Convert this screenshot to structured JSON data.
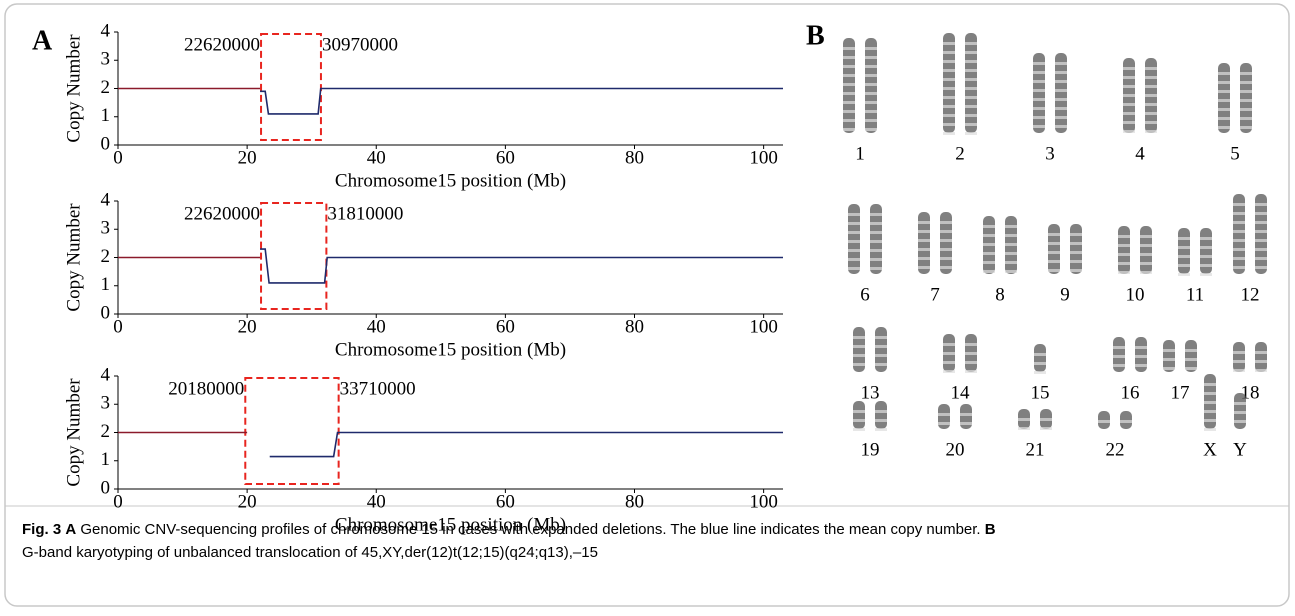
{
  "panel_a": "A",
  "panel_b": "B",
  "chart_data": [
    {
      "type": "line",
      "xlabel": "Chromosome15 position (Mb)",
      "ylabel": "Copy Number",
      "xlim": [
        0,
        103
      ],
      "xticks": [
        0,
        20,
        40,
        60,
        80,
        100
      ],
      "ylim": [
        0,
        4
      ],
      "yticks": [
        0,
        1,
        2,
        3,
        4
      ],
      "annotations": [
        22620000,
        30970000
      ],
      "series": [
        {
          "color": "#8b1a2b",
          "x": [
            0,
            22
          ],
          "values": [
            2,
            2
          ]
        },
        {
          "color": "#1f2a6b",
          "x": [
            22,
            22.8,
            23.3,
            31,
            31.4,
            103
          ],
          "values": [
            1.9,
            1.9,
            1.1,
            1.1,
            2,
            2
          ]
        }
      ]
    },
    {
      "type": "line",
      "xlabel": "Chromosome15 position (Mb)",
      "ylabel": "Copy Number",
      "xlim": [
        0,
        103
      ],
      "xticks": [
        0,
        20,
        40,
        60,
        80,
        100
      ],
      "ylim": [
        0,
        4
      ],
      "yticks": [
        0,
        1,
        2,
        3,
        4
      ],
      "annotations": [
        22620000,
        31810000
      ],
      "series": [
        {
          "color": "#8b1a2b",
          "x": [
            0,
            22
          ],
          "values": [
            2,
            2
          ]
        },
        {
          "color": "#1f2a6b",
          "x": [
            22,
            22.8,
            23.4,
            32,
            32.4,
            103
          ],
          "values": [
            2.3,
            2.3,
            1.1,
            1.1,
            2,
            2
          ]
        }
      ]
    },
    {
      "type": "line",
      "xlabel": "Chromosome15 position (Mb)",
      "ylabel": "Copy Number",
      "xlim": [
        0,
        103
      ],
      "xticks": [
        0,
        20,
        40,
        60,
        80,
        100
      ],
      "ylim": [
        0,
        4
      ],
      "yticks": [
        0,
        1,
        2,
        3,
        4
      ],
      "annotations": [
        20180000,
        33710000
      ],
      "series": [
        {
          "color": "#8b1a2b",
          "x": [
            0,
            20
          ],
          "values": [
            2,
            2
          ]
        },
        {
          "color": "#1f2a6b",
          "x": [
            23.5,
            33.4,
            34,
            103
          ],
          "values": [
            1.15,
            1.15,
            2,
            2
          ]
        }
      ]
    }
  ],
  "karyotype": {
    "labels": [
      "1",
      "2",
      "3",
      "4",
      "5",
      "6",
      "7",
      "8",
      "9",
      "10",
      "11",
      "12",
      "13",
      "14",
      "15",
      "16",
      "17",
      "18",
      "19",
      "20",
      "21",
      "22",
      "X",
      "Y"
    ]
  },
  "caption": {
    "figure": "Fig. 3",
    "parts": [
      {
        "label": "A",
        "text": " Genomic CNV-sequencing profiles of chromosome 15 in cases with expanded deletions. The blue line indicates the mean copy number. "
      },
      {
        "label": "B",
        "text": " G-band karyotyping of unbalanced translocation of 45,XY,der(12)t(12;15)(q24;q13),–15"
      }
    ]
  }
}
